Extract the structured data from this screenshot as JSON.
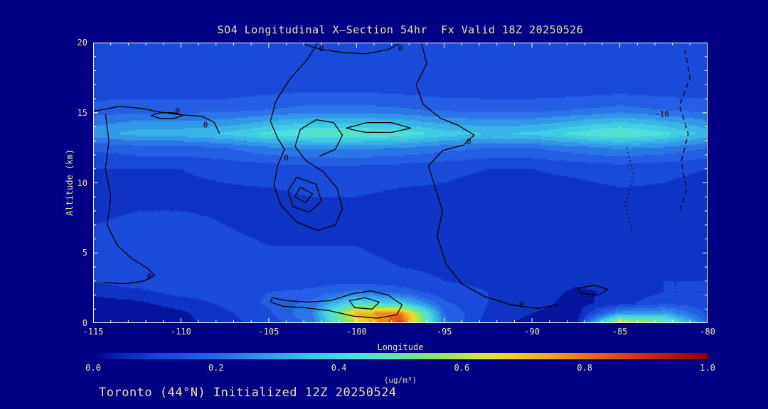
{
  "colors": {
    "background": "#000084",
    "text": "#f0e0a8",
    "frame": "#ffffff",
    "contour": "#000000"
  },
  "chart_data": {
    "type": "heatmap",
    "title": "SO4 Longitudinal X—Section 54hr  Fx Valid 18Z 20250526",
    "annotation": "Toronto (44°N) Initialized 12Z 20250524",
    "xlabel": "Longitude",
    "ylabel": "Altitude (km)",
    "colorbar_label": "(ug/m³)",
    "x_range": [
      -115,
      -80
    ],
    "y_range": [
      0,
      20
    ],
    "xticks": [
      -115,
      -110,
      -105,
      -100,
      -95,
      -90,
      -85,
      -80
    ],
    "yticks": [
      0,
      5,
      10,
      15,
      20
    ],
    "x_minor_step": 1,
    "y_minor_step": 1,
    "value_range": [
      0,
      1
    ],
    "band_step": 0.05,
    "colorbar_ticks": [
      "0.0",
      "0.2",
      "0.4",
      "0.6",
      "0.8",
      "1.0"
    ],
    "colormap": [
      [
        0.0,
        "#000084"
      ],
      [
        0.05,
        "#0a28b4"
      ],
      [
        0.1,
        "#1440d2"
      ],
      [
        0.15,
        "#1e55e0"
      ],
      [
        0.2,
        "#2866e6"
      ],
      [
        0.28,
        "#329ae6"
      ],
      [
        0.36,
        "#3cc8e6"
      ],
      [
        0.43,
        "#50e0d8"
      ],
      [
        0.5,
        "#64e6a0"
      ],
      [
        0.57,
        "#96e65a"
      ],
      [
        0.63,
        "#d2e63c"
      ],
      [
        0.68,
        "#f0d228"
      ],
      [
        0.75,
        "#f0a01e"
      ],
      [
        0.82,
        "#e66414"
      ],
      [
        0.9,
        "#d2280a"
      ],
      [
        1.0,
        "#8c0000"
      ]
    ],
    "x_longitudes": [
      -115,
      -112.5,
      -110,
      -107.5,
      -105,
      -102.5,
      -100,
      -97.5,
      -95,
      -92.5,
      -90,
      -87.5,
      -85,
      -82.5,
      -80
    ],
    "y_altitudes": [
      0,
      0.7,
      1.4,
      2.2,
      3,
      4,
      5.5,
      7,
      9,
      11,
      12.5,
      13.5,
      14.2,
      15.2,
      16.5,
      18,
      20
    ],
    "grid": [
      [
        0.02,
        0.02,
        0.03,
        0.08,
        0.12,
        0.22,
        0.62,
        0.88,
        0.22,
        0.07,
        0.03,
        0.02,
        0.68,
        0.55,
        0.18
      ],
      [
        0.02,
        0.02,
        0.04,
        0.09,
        0.14,
        0.25,
        0.72,
        0.8,
        0.2,
        0.09,
        0.05,
        0.02,
        0.28,
        0.3,
        0.14
      ],
      [
        0.03,
        0.04,
        0.07,
        0.11,
        0.16,
        0.22,
        0.44,
        0.38,
        0.16,
        0.1,
        0.07,
        0.03,
        0.08,
        0.14,
        0.12
      ],
      [
        0.06,
        0.08,
        0.12,
        0.13,
        0.15,
        0.16,
        0.22,
        0.18,
        0.12,
        0.1,
        0.08,
        0.04,
        0.06,
        0.1,
        0.1
      ],
      [
        0.1,
        0.14,
        0.15,
        0.13,
        0.13,
        0.13,
        0.13,
        0.12,
        0.1,
        0.09,
        0.08,
        0.06,
        0.07,
        0.1,
        0.1
      ],
      [
        0.12,
        0.15,
        0.14,
        0.12,
        0.11,
        0.11,
        0.11,
        0.1,
        0.09,
        0.08,
        0.08,
        0.07,
        0.08,
        0.09,
        0.1
      ],
      [
        0.12,
        0.13,
        0.12,
        0.11,
        0.1,
        0.1,
        0.1,
        0.09,
        0.08,
        0.08,
        0.08,
        0.07,
        0.08,
        0.09,
        0.09
      ],
      [
        0.1,
        0.11,
        0.11,
        0.1,
        0.09,
        0.09,
        0.09,
        0.09,
        0.08,
        0.08,
        0.08,
        0.08,
        0.08,
        0.09,
        0.09
      ],
      [
        0.08,
        0.09,
        0.09,
        0.09,
        0.09,
        0.1,
        0.1,
        0.09,
        0.09,
        0.08,
        0.08,
        0.08,
        0.09,
        0.09,
        0.08
      ],
      [
        0.1,
        0.1,
        0.1,
        0.11,
        0.12,
        0.13,
        0.13,
        0.12,
        0.11,
        0.1,
        0.1,
        0.11,
        0.12,
        0.11,
        0.1
      ],
      [
        0.16,
        0.18,
        0.18,
        0.2,
        0.24,
        0.26,
        0.26,
        0.25,
        0.22,
        0.2,
        0.2,
        0.23,
        0.26,
        0.24,
        0.2
      ],
      [
        0.28,
        0.32,
        0.33,
        0.36,
        0.42,
        0.46,
        0.46,
        0.44,
        0.38,
        0.35,
        0.36,
        0.42,
        0.47,
        0.42,
        0.33
      ],
      [
        0.24,
        0.27,
        0.27,
        0.28,
        0.33,
        0.36,
        0.36,
        0.34,
        0.3,
        0.28,
        0.29,
        0.33,
        0.37,
        0.33,
        0.27
      ],
      [
        0.17,
        0.18,
        0.18,
        0.18,
        0.2,
        0.22,
        0.22,
        0.21,
        0.19,
        0.18,
        0.18,
        0.2,
        0.22,
        0.2,
        0.18
      ],
      [
        0.13,
        0.13,
        0.13,
        0.13,
        0.14,
        0.15,
        0.15,
        0.14,
        0.13,
        0.13,
        0.13,
        0.13,
        0.14,
        0.13,
        0.13
      ],
      [
        0.12,
        0.12,
        0.12,
        0.12,
        0.13,
        0.13,
        0.13,
        0.13,
        0.12,
        0.12,
        0.12,
        0.12,
        0.12,
        0.12,
        0.12
      ],
      [
        0.13,
        0.13,
        0.13,
        0.13,
        0.14,
        0.14,
        0.14,
        0.14,
        0.13,
        0.13,
        0.13,
        0.13,
        0.13,
        0.13,
        0.13
      ]
    ],
    "contours": [
      {
        "style": "solid",
        "points": [
          [
            -115,
            15.1
          ],
          [
            -113.5,
            15.45
          ],
          [
            -112.2,
            15.3
          ],
          [
            -111.2,
            15.05
          ],
          [
            -110,
            14.85
          ],
          [
            -108.8,
            14.75
          ],
          [
            -108.1,
            14.3
          ],
          [
            -107.8,
            13.5
          ]
        ],
        "labels": [
          {
            "text": "0",
            "lon": -110.2,
            "alt": 15.15
          },
          {
            "text": "0",
            "lon": -108.6,
            "alt": 14.15
          }
        ]
      },
      {
        "style": "solid",
        "points": [
          [
            -111.7,
            14.8
          ],
          [
            -111.2,
            15.0
          ],
          [
            -110.4,
            15.0
          ],
          [
            -109.9,
            14.8
          ],
          [
            -110.4,
            14.6
          ],
          [
            -111.2,
            14.6
          ],
          [
            -111.7,
            14.8
          ]
        ],
        "labels": []
      },
      {
        "style": "solid",
        "points": [
          [
            -114.3,
            14.9
          ],
          [
            -114.1,
            13.0
          ],
          [
            -114.3,
            11.0
          ],
          [
            -114.0,
            9.0
          ],
          [
            -114.2,
            7.0
          ],
          [
            -113.6,
            5.5
          ],
          [
            -112.8,
            4.6
          ],
          [
            -111.9,
            3.9
          ],
          [
            -111.5,
            3.4
          ],
          [
            -112.1,
            3.0
          ],
          [
            -113.2,
            2.8
          ],
          [
            -114.4,
            2.9
          ]
        ],
        "labels": [
          {
            "text": "0",
            "lon": -111.8,
            "alt": 3.35
          }
        ]
      },
      {
        "style": "solid",
        "points": [
          [
            -102.2,
            20
          ],
          [
            -102.8,
            18.8
          ],
          [
            -103.8,
            17.4
          ],
          [
            -104.6,
            15.8
          ],
          [
            -104.9,
            14.4
          ],
          [
            -104.5,
            13.2
          ],
          [
            -104.1,
            12.4
          ],
          [
            -104.5,
            11.2
          ],
          [
            -104.7,
            9.8
          ],
          [
            -104.3,
            8.4
          ],
          [
            -103.4,
            7.2
          ],
          [
            -102.2,
            6.6
          ],
          [
            -101.2,
            7.0
          ],
          [
            -100.8,
            8.2
          ],
          [
            -101.1,
            9.6
          ],
          [
            -101.9,
            10.8
          ],
          [
            -102.9,
            11.6
          ],
          [
            -103.5,
            12.6
          ],
          [
            -103.2,
            13.8
          ],
          [
            -102.3,
            14.5
          ],
          [
            -101.3,
            14.3
          ],
          [
            -100.8,
            13.4
          ],
          [
            -101.2,
            12.4
          ],
          [
            -102.1,
            11.9
          ]
        ],
        "labels": [
          {
            "text": "0",
            "lon": -104.0,
            "alt": 11.8
          }
        ]
      },
      {
        "style": "solid",
        "points": [
          [
            -103.4,
            10.4
          ],
          [
            -103.9,
            9.4
          ],
          [
            -103.6,
            8.3
          ],
          [
            -102.7,
            7.9
          ],
          [
            -102.0,
            8.7
          ],
          [
            -102.3,
            9.9
          ],
          [
            -103.4,
            10.4
          ]
        ],
        "labels": []
      },
      {
        "style": "solid",
        "points": [
          [
            -103.2,
            9.7
          ],
          [
            -103.5,
            9.0
          ],
          [
            -102.9,
            8.6
          ],
          [
            -102.5,
            9.2
          ],
          [
            -103.2,
            9.7
          ]
        ],
        "labels": []
      },
      {
        "style": "solid",
        "points": [
          [
            -103.0,
            19.9
          ],
          [
            -102.0,
            19.5
          ],
          [
            -100.8,
            19.3
          ],
          [
            -99.5,
            19.2
          ],
          [
            -98.2,
            19.5
          ],
          [
            -97.6,
            19.9
          ]
        ],
        "labels": [
          {
            "text": "0",
            "lon": -102.0,
            "alt": 19.6
          },
          {
            "text": "0",
            "lon": -97.5,
            "alt": 19.6
          }
        ]
      },
      {
        "style": "solid",
        "points": [
          [
            -96.3,
            20
          ],
          [
            -96.0,
            18.5
          ],
          [
            -96.6,
            17.0
          ],
          [
            -96.2,
            15.6
          ],
          [
            -95.2,
            14.6
          ],
          [
            -94.2,
            14.1
          ],
          [
            -93.3,
            13.4
          ],
          [
            -93.9,
            12.7
          ],
          [
            -95.1,
            12.3
          ],
          [
            -95.9,
            11.2
          ],
          [
            -95.5,
            9.6
          ],
          [
            -95.1,
            8.0
          ],
          [
            -95.4,
            6.2
          ],
          [
            -94.9,
            4.2
          ],
          [
            -94.0,
            2.8
          ],
          [
            -92.7,
            1.9
          ],
          [
            -91.2,
            1.3
          ],
          [
            -89.7,
            1.05
          ],
          [
            -88.5,
            1.3
          ]
        ],
        "labels": [
          {
            "text": "0",
            "lon": -93.6,
            "alt": 12.95
          },
          {
            "text": "0",
            "lon": -90.6,
            "alt": 1.35
          }
        ]
      },
      {
        "style": "solid",
        "points": [
          [
            -100.6,
            13.9
          ],
          [
            -99.4,
            14.3
          ],
          [
            -98.0,
            14.3
          ],
          [
            -96.9,
            13.9
          ],
          [
            -98.0,
            13.6
          ],
          [
            -99.5,
            13.6
          ],
          [
            -100.6,
            13.9
          ]
        ],
        "labels": []
      },
      {
        "style": "solid",
        "points": [
          [
            -104.8,
            1.8
          ],
          [
            -104.0,
            1.6
          ],
          [
            -102.8,
            1.5
          ],
          [
            -101.5,
            1.6
          ],
          [
            -100.2,
            2.1
          ],
          [
            -99.2,
            2.3
          ],
          [
            -98.2,
            2.0
          ],
          [
            -97.4,
            1.3
          ],
          [
            -97.7,
            0.6
          ],
          [
            -98.8,
            0.35
          ],
          [
            -100.2,
            0.5
          ],
          [
            -101.6,
            0.9
          ],
          [
            -103.0,
            1.1
          ],
          [
            -104.2,
            1.2
          ],
          [
            -104.9,
            1.5
          ],
          [
            -104.8,
            1.8
          ]
        ],
        "labels": []
      },
      {
        "style": "solid",
        "points": [
          [
            -100.4,
            1.6
          ],
          [
            -99.5,
            1.8
          ],
          [
            -98.7,
            1.5
          ],
          [
            -99.1,
            1.0
          ],
          [
            -100.1,
            1.1
          ],
          [
            -100.4,
            1.6
          ]
        ],
        "labels": []
      },
      {
        "style": "solid",
        "points": [
          [
            -87.4,
            2.5
          ],
          [
            -86.4,
            2.7
          ],
          [
            -85.7,
            2.4
          ],
          [
            -86.2,
            2.0
          ],
          [
            -87.2,
            2.1
          ],
          [
            -87.4,
            2.5
          ]
        ],
        "labels": []
      },
      {
        "style": "dashed",
        "points": [
          [
            -81.3,
            19.5
          ],
          [
            -81.0,
            17.5
          ],
          [
            -81.6,
            15.5
          ],
          [
            -81.1,
            13.5
          ],
          [
            -81.5,
            11.5
          ],
          [
            -81.2,
            9.5
          ],
          [
            -81.6,
            8.0
          ]
        ],
        "labels": [
          {
            "text": "-10",
            "lon": -82.6,
            "alt": 14.9
          }
        ]
      },
      {
        "style": "dotted",
        "points": [
          [
            -84.6,
            12.5
          ],
          [
            -84.2,
            10.5
          ],
          [
            -84.7,
            8.5
          ],
          [
            -84.3,
            6.5
          ]
        ],
        "labels": []
      }
    ]
  }
}
